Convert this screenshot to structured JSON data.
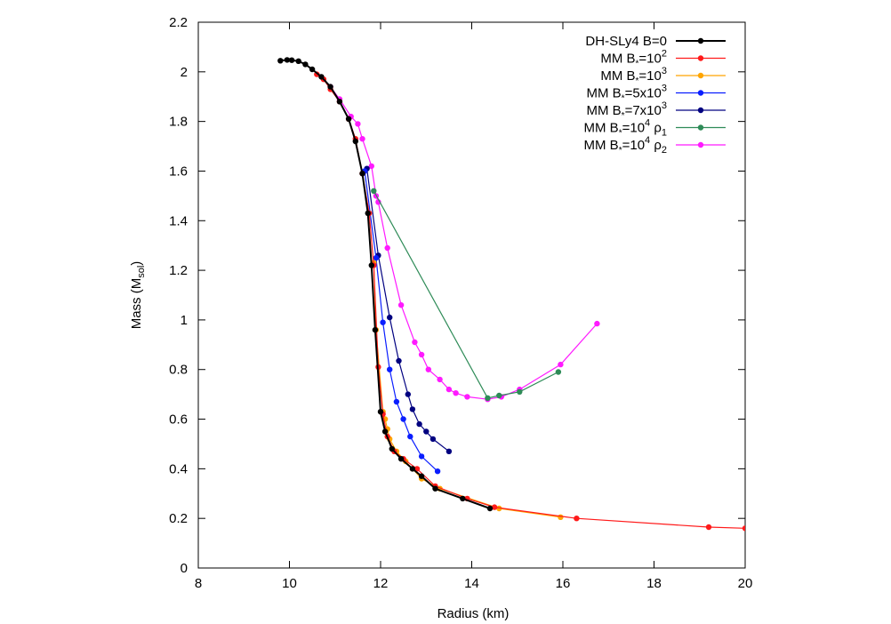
{
  "chart_data": {
    "type": "line",
    "title": "",
    "xlabel": "Radius (km)",
    "ylabel": "Mass (M",
    "ylabel_sub": "sol",
    "ylabel_close": ")",
    "xlim": [
      8,
      20
    ],
    "ylim": [
      0,
      2.2
    ],
    "xticks": [
      "8",
      "10",
      "12",
      "14",
      "16",
      "18",
      "20"
    ],
    "yticks": [
      "0",
      "0.2",
      "0.4",
      "0.6",
      "0.8",
      "1",
      "1.2",
      "1.4",
      "1.6",
      "1.8",
      "2",
      "2.2"
    ],
    "grid": false,
    "legend_position": "top-right",
    "series": [
      {
        "name": "DH-SLy4 B=0",
        "legend": {
          "base": "DH-SLy4 B=0",
          "sup": "",
          "tail": "",
          "sub": ""
        },
        "color": "#000000",
        "points": [
          [
            9.8,
            2.045
          ],
          [
            9.95,
            2.048
          ],
          [
            10.05,
            2.047
          ],
          [
            10.2,
            2.043
          ],
          [
            10.35,
            2.03
          ],
          [
            10.5,
            2.01
          ],
          [
            10.7,
            1.98
          ],
          [
            10.9,
            1.94
          ],
          [
            11.1,
            1.88
          ],
          [
            11.3,
            1.81
          ],
          [
            11.45,
            1.72
          ],
          [
            11.6,
            1.59
          ],
          [
            11.72,
            1.43
          ],
          [
            11.8,
            1.22
          ],
          [
            11.88,
            0.96
          ],
          [
            12.0,
            0.63
          ],
          [
            12.1,
            0.55
          ],
          [
            12.25,
            0.48
          ],
          [
            12.45,
            0.44
          ],
          [
            12.7,
            0.4
          ],
          [
            12.9,
            0.37
          ],
          [
            13.2,
            0.32
          ],
          [
            13.8,
            0.28
          ],
          [
            14.4,
            0.24
          ]
        ]
      },
      {
        "name": "MM B*=10^2",
        "legend": {
          "base": "MM B",
          "sup": "2",
          "tail": "",
          "sub": ""
        },
        "color": "#ff1a1a",
        "points": [
          [
            10.6,
            1.99
          ],
          [
            10.75,
            1.97
          ],
          [
            10.9,
            1.93
          ],
          [
            11.1,
            1.88
          ],
          [
            11.3,
            1.81
          ],
          [
            11.45,
            1.73
          ],
          [
            11.6,
            1.59
          ],
          [
            11.75,
            1.43
          ],
          [
            11.85,
            1.22
          ],
          [
            11.95,
            0.81
          ],
          [
            12.05,
            0.62
          ],
          [
            12.15,
            0.53
          ],
          [
            12.3,
            0.47
          ],
          [
            12.5,
            0.44
          ],
          [
            12.8,
            0.4
          ],
          [
            13.2,
            0.33
          ],
          [
            13.9,
            0.28
          ],
          [
            14.5,
            0.245
          ],
          [
            16.3,
            0.2
          ],
          [
            19.2,
            0.165
          ],
          [
            20,
            0.16
          ]
        ]
      },
      {
        "name": "MM B*=10^3",
        "legend": {
          "base": "MM B",
          "sup": "3",
          "tail": "",
          "sub": ""
        },
        "color": "#ffa500",
        "points": [
          [
            11.85,
            1.23
          ],
          [
            11.9,
            0.96
          ],
          [
            12.05,
            0.63
          ],
          [
            12.1,
            0.6
          ],
          [
            12.15,
            0.56
          ],
          [
            12.2,
            0.52
          ],
          [
            12.35,
            0.47
          ],
          [
            12.55,
            0.43
          ],
          [
            12.7,
            0.4
          ],
          [
            12.9,
            0.36
          ],
          [
            13.3,
            0.32
          ],
          [
            14.6,
            0.24
          ],
          [
            15.95,
            0.205
          ]
        ]
      },
      {
        "name": "MM B*=5x10^3",
        "legend": {
          "base": "MM B",
          "sup": "3",
          "tail": "5x10",
          "sub": ""
        },
        "color": "#0a1eff",
        "points": [
          [
            11.65,
            1.6
          ],
          [
            11.9,
            1.25
          ],
          [
            12.05,
            0.99
          ],
          [
            12.2,
            0.8
          ],
          [
            12.35,
            0.67
          ],
          [
            12.5,
            0.6
          ],
          [
            12.65,
            0.53
          ],
          [
            12.9,
            0.45
          ],
          [
            13.25,
            0.39
          ]
        ]
      },
      {
        "name": "MM B*=7x10^3",
        "legend": {
          "base": "MM B",
          "sup": "3",
          "tail": "7x10",
          "sub": ""
        },
        "color": "#000080",
        "points": [
          [
            11.7,
            1.61
          ],
          [
            11.95,
            1.26
          ],
          [
            12.2,
            1.01
          ],
          [
            12.4,
            0.835
          ],
          [
            12.6,
            0.7
          ],
          [
            12.7,
            0.64
          ],
          [
            12.85,
            0.58
          ],
          [
            13.0,
            0.55
          ],
          [
            13.15,
            0.52
          ],
          [
            13.5,
            0.47
          ]
        ]
      },
      {
        "name": "MM B*=10^4 rho1",
        "legend": {
          "base": "MM B",
          "sup": "4",
          "tail": "",
          "sub": "1"
        },
        "color": "#2e8b57",
        "points": [
          [
            11.85,
            1.52
          ],
          [
            14.35,
            0.685
          ],
          [
            14.6,
            0.695
          ],
          [
            15.05,
            0.71
          ],
          [
            15.9,
            0.79
          ]
        ]
      },
      {
        "name": "MM B*=10^4 rho2",
        "legend": {
          "base": "MM B",
          "sup": "4",
          "tail": "",
          "sub": "2"
        },
        "color": "#ff1aff",
        "points": [
          [
            10.9,
            1.94
          ],
          [
            11.1,
            1.89
          ],
          [
            11.35,
            1.82
          ],
          [
            11.5,
            1.79
          ],
          [
            11.6,
            1.73
          ],
          [
            11.8,
            1.62
          ],
          [
            11.9,
            1.5
          ],
          [
            11.95,
            1.475
          ],
          [
            12.15,
            1.29
          ],
          [
            12.45,
            1.06
          ],
          [
            12.75,
            0.91
          ],
          [
            12.9,
            0.86
          ],
          [
            13.05,
            0.8
          ],
          [
            13.3,
            0.76
          ],
          [
            13.5,
            0.72
          ],
          [
            13.65,
            0.705
          ],
          [
            13.9,
            0.69
          ],
          [
            14.35,
            0.68
          ],
          [
            14.65,
            0.69
          ],
          [
            15.05,
            0.72
          ],
          [
            15.95,
            0.82
          ],
          [
            16.75,
            0.985
          ]
        ]
      }
    ]
  }
}
